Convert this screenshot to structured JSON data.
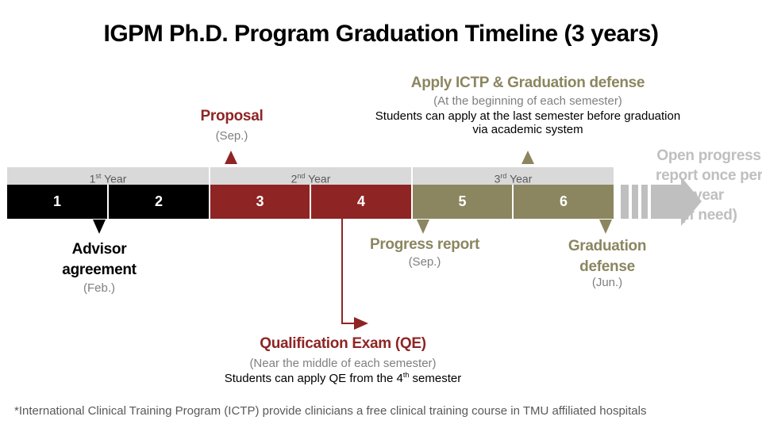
{
  "title": "IGPM Ph.D. Program Graduation Timeline (3 years)",
  "years": [
    {
      "ordinal": "1",
      "suffix": "st",
      "label": "Year"
    },
    {
      "ordinal": "2",
      "suffix": "nd",
      "label": "Year"
    },
    {
      "ordinal": "3",
      "suffix": "rd",
      "label": "Year"
    }
  ],
  "semesters": [
    "1",
    "2",
    "3",
    "4",
    "5",
    "6"
  ],
  "colors": {
    "year1": "#000000",
    "year2": "#8f2424",
    "year3": "#8b8660",
    "yearbar": "#d9d9d9",
    "future": "#bfbfbf"
  },
  "milestones": {
    "proposal": {
      "title": "Proposal",
      "sub": "(Sep.)"
    },
    "advisor": {
      "title_line1": "Advisor",
      "title_line2": "agreement",
      "sub": "(Feb.)"
    },
    "icpt": {
      "title": "Apply ICTP & Graduation defense",
      "sub": "(At the beginning of each semester)",
      "line1": "Students can apply at the last semester before graduation",
      "line2": "via academic system"
    },
    "progress": {
      "title": "Progress report",
      "sub": "(Sep.)"
    },
    "defense": {
      "title_line1": "Graduation",
      "title_line2": "defense",
      "sub": "(Jun.)"
    },
    "qe": {
      "title": "Qualification Exam (QE)",
      "sub": "(Near the middle of each semester)",
      "line_prefix": "Students can apply QE from the 4",
      "line_sup": "th",
      "line_suffix": " semester"
    },
    "open": {
      "line1": "Open progress",
      "line2": "report once per",
      "line3": "year",
      "line4": "(if need)"
    }
  },
  "footnote": "*International  Clinical Training Program (ICTP) provide clinicians a free clinical training course in TMU affiliated hospitals"
}
